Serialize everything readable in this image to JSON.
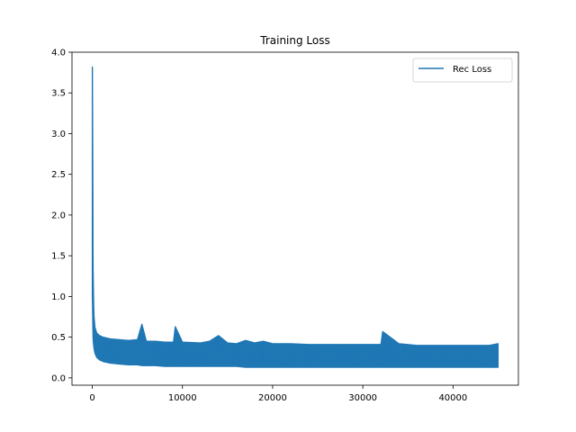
{
  "chart_data": {
    "type": "line",
    "title": "Training Loss",
    "xlabel": "",
    "ylabel": "",
    "xlim": [
      -2250,
      47250
    ],
    "ylim": [
      -0.09,
      4.0
    ],
    "xticks": [
      0,
      10000,
      20000,
      30000,
      40000
    ],
    "xtick_labels": [
      "0",
      "10000",
      "20000",
      "30000",
      "40000"
    ],
    "yticks": [
      0.0,
      0.5,
      1.0,
      1.5,
      2.0,
      2.5,
      3.0,
      3.5,
      4.0
    ],
    "ytick_labels": [
      "0.0",
      "0.5",
      "1.0",
      "1.5",
      "2.0",
      "2.5",
      "3.0",
      "3.5",
      "4.0"
    ],
    "grid": false,
    "legend": {
      "position": "top-right"
    },
    "series": [
      {
        "name": "Rec Loss",
        "color": "#1f77b4",
        "x": [
          0,
          20,
          40,
          60,
          80,
          100,
          150,
          200,
          300,
          500,
          800,
          1200,
          2000,
          3000,
          4000,
          5000,
          5500,
          6000,
          7000,
          8000,
          9000,
          9200,
          10000,
          12000,
          13000,
          14000,
          15000,
          16000,
          17000,
          18000,
          19000,
          20000,
          22000,
          24000,
          26000,
          28000,
          30000,
          32000,
          32200,
          34000,
          36000,
          38000,
          40000,
          42000,
          44000,
          45000
        ],
        "upper": [
          3.82,
          3.8,
          3.1,
          2.6,
          1.6,
          1.3,
          0.95,
          0.75,
          0.62,
          0.55,
          0.52,
          0.5,
          0.48,
          0.47,
          0.46,
          0.47,
          0.66,
          0.45,
          0.45,
          0.44,
          0.44,
          0.63,
          0.44,
          0.43,
          0.45,
          0.52,
          0.43,
          0.42,
          0.46,
          0.43,
          0.45,
          0.42,
          0.42,
          0.41,
          0.41,
          0.41,
          0.41,
          0.41,
          0.57,
          0.42,
          0.4,
          0.4,
          0.4,
          0.4,
          0.4,
          0.42
        ],
        "lower": [
          1.0,
          0.9,
          0.75,
          0.6,
          0.5,
          0.45,
          0.4,
          0.35,
          0.3,
          0.25,
          0.22,
          0.2,
          0.18,
          0.17,
          0.16,
          0.16,
          0.15,
          0.15,
          0.15,
          0.14,
          0.14,
          0.14,
          0.14,
          0.14,
          0.14,
          0.14,
          0.14,
          0.14,
          0.13,
          0.13,
          0.13,
          0.13,
          0.13,
          0.13,
          0.13,
          0.13,
          0.13,
          0.13,
          0.13,
          0.13,
          0.13,
          0.13,
          0.13,
          0.13,
          0.13,
          0.13
        ]
      }
    ]
  }
}
